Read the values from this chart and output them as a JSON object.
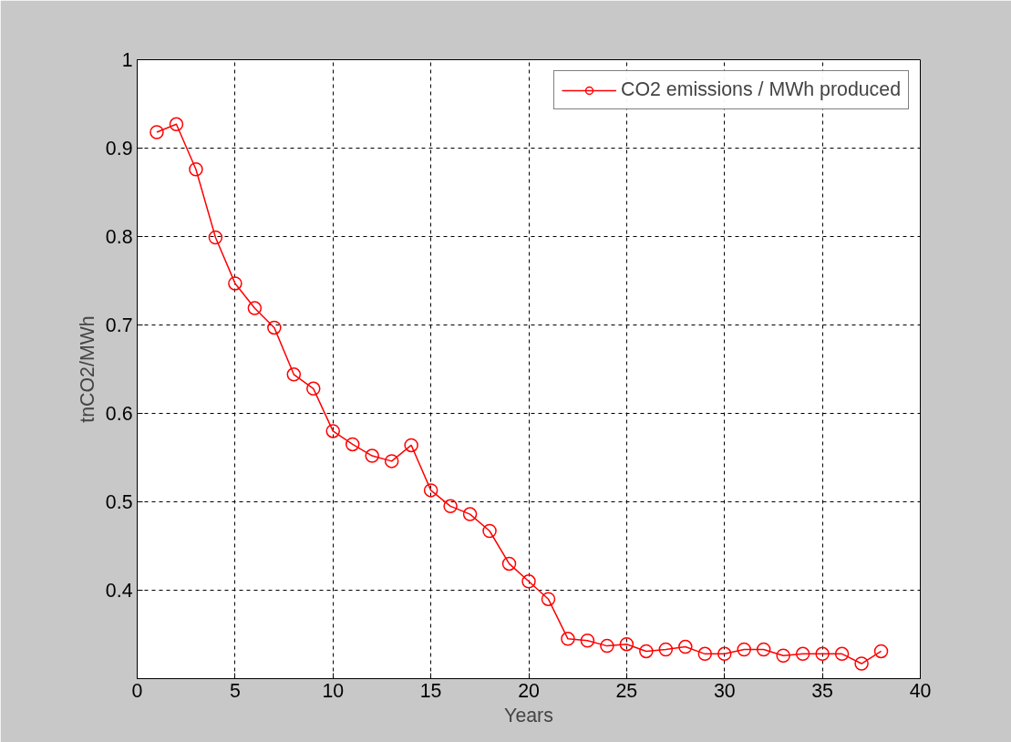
{
  "chart_data": {
    "type": "line",
    "xlabel": "Years",
    "ylabel": "tnCO2/MWh",
    "x": [
      1,
      2,
      3,
      4,
      5,
      6,
      7,
      8,
      9,
      10,
      11,
      12,
      13,
      14,
      15,
      16,
      17,
      18,
      19,
      20,
      21,
      22,
      23,
      24,
      25,
      26,
      27,
      28,
      29,
      30,
      31,
      32,
      33,
      34,
      35,
      36,
      37,
      38
    ],
    "series": [
      {
        "name": "CO2 emissions / MWh produced",
        "color": "#ff0000",
        "values": [
          0.918,
          0.927,
          0.876,
          0.799,
          0.747,
          0.719,
          0.697,
          0.644,
          0.628,
          0.58,
          0.565,
          0.552,
          0.546,
          0.564,
          0.513,
          0.495,
          0.486,
          0.467,
          0.43,
          0.41,
          0.39,
          0.345,
          0.343,
          0.337,
          0.339,
          0.331,
          0.333,
          0.336,
          0.328,
          0.328,
          0.333,
          0.333,
          0.326,
          0.328,
          0.328,
          0.328,
          0.317,
          0.331
        ]
      }
    ],
    "xlim": [
      0,
      40
    ],
    "xticks": [
      0,
      5,
      10,
      15,
      20,
      25,
      30,
      35,
      40
    ],
    "ylim": [
      0.3,
      1
    ],
    "yticks": [
      0.4,
      0.5,
      0.6,
      0.7,
      0.8,
      0.9,
      1
    ],
    "grid": true,
    "legend": "top right",
    "marker": "circle",
    "line_style": "solid"
  }
}
